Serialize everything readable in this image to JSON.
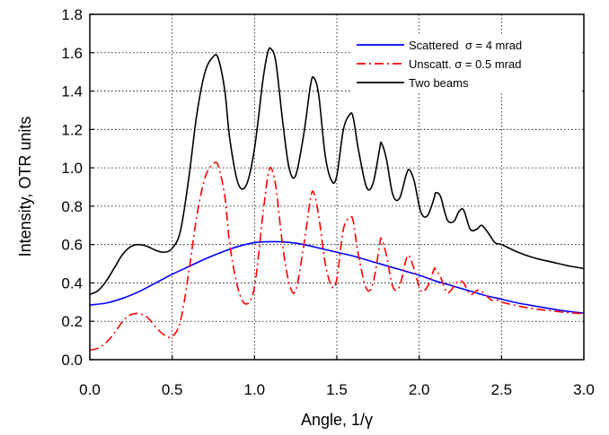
{
  "chart_data": {
    "type": "line",
    "title": "",
    "xlabel": "Angle, 1/γ",
    "ylabel": "Intensity, OTR units",
    "xlim": [
      0.0,
      3.0
    ],
    "ylim": [
      0.0,
      1.8
    ],
    "xticks": [
      "0.0",
      "0.5",
      "1.0",
      "1.5",
      "2.0",
      "2.5",
      "3.0"
    ],
    "yticks": [
      "0.0",
      "0.2",
      "0.4",
      "0.6",
      "0.8",
      "1.0",
      "1.2",
      "1.4",
      "1.6",
      "1.8"
    ],
    "grid": true,
    "legend_position": "top-right",
    "series": [
      {
        "name": "Scattered  σ = 4 mrad",
        "color": "#0000ff",
        "style": "solid",
        "x": [
          0.0,
          0.1,
          0.2,
          0.3,
          0.4,
          0.5,
          0.6,
          0.7,
          0.8,
          0.9,
          1.0,
          1.1,
          1.2,
          1.3,
          1.4,
          1.5,
          1.6,
          1.7,
          1.8,
          1.9,
          2.0,
          2.1,
          2.2,
          2.3,
          2.4,
          2.5,
          2.6,
          2.7,
          2.8,
          2.9,
          3.0
        ],
        "y": [
          0.285,
          0.295,
          0.32,
          0.355,
          0.4,
          0.445,
          0.485,
          0.525,
          0.56,
          0.59,
          0.61,
          0.615,
          0.612,
          0.6,
          0.58,
          0.56,
          0.54,
          0.515,
          0.49,
          0.465,
          0.44,
          0.41,
          0.385,
          0.36,
          0.335,
          0.315,
          0.295,
          0.28,
          0.265,
          0.252,
          0.243
        ]
      },
      {
        "name": "Unscatt. σ = 0.5 mrad",
        "color": "#ff0000",
        "style": "dash-dot",
        "x": [
          0.0,
          0.05,
          0.1,
          0.15,
          0.2,
          0.25,
          0.3,
          0.35,
          0.4,
          0.45,
          0.5,
          0.55,
          0.6,
          0.65,
          0.7,
          0.75,
          0.78,
          0.82,
          0.85,
          0.9,
          0.95,
          1.0,
          1.05,
          1.08,
          1.1,
          1.13,
          1.17,
          1.21,
          1.25,
          1.3,
          1.34,
          1.36,
          1.39,
          1.43,
          1.47,
          1.5,
          1.54,
          1.58,
          1.6,
          1.63,
          1.68,
          1.72,
          1.76,
          1.77,
          1.8,
          1.84,
          1.88,
          1.92,
          1.94,
          1.97,
          2.01,
          2.05,
          2.09,
          2.1,
          2.13,
          2.17,
          2.21,
          2.24,
          2.27,
          2.31,
          2.35,
          2.37,
          2.4,
          2.44,
          2.48,
          2.5,
          2.6,
          2.7,
          2.8,
          2.9,
          3.0
        ],
        "y": [
          0.05,
          0.06,
          0.09,
          0.14,
          0.2,
          0.235,
          0.24,
          0.22,
          0.17,
          0.13,
          0.12,
          0.2,
          0.45,
          0.75,
          0.95,
          1.02,
          1.01,
          0.85,
          0.6,
          0.37,
          0.29,
          0.38,
          0.75,
          0.95,
          1.0,
          0.9,
          0.6,
          0.4,
          0.36,
          0.6,
          0.84,
          0.87,
          0.75,
          0.5,
          0.38,
          0.42,
          0.68,
          0.74,
          0.72,
          0.55,
          0.37,
          0.4,
          0.6,
          0.63,
          0.55,
          0.38,
          0.38,
          0.52,
          0.54,
          0.47,
          0.36,
          0.38,
          0.47,
          0.47,
          0.43,
          0.35,
          0.38,
          0.41,
          0.4,
          0.34,
          0.36,
          0.36,
          0.34,
          0.31,
          0.31,
          0.3,
          0.28,
          0.265,
          0.255,
          0.245,
          0.24
        ]
      },
      {
        "name": "Two beams",
        "color": "#000000",
        "style": "solid",
        "x": [
          0.0,
          0.05,
          0.1,
          0.15,
          0.2,
          0.25,
          0.3,
          0.35,
          0.4,
          0.45,
          0.5,
          0.55,
          0.6,
          0.65,
          0.7,
          0.75,
          0.78,
          0.82,
          0.85,
          0.9,
          0.95,
          1.0,
          1.05,
          1.08,
          1.1,
          1.13,
          1.17,
          1.21,
          1.25,
          1.3,
          1.34,
          1.36,
          1.39,
          1.43,
          1.47,
          1.5,
          1.54,
          1.58,
          1.6,
          1.63,
          1.68,
          1.72,
          1.76,
          1.77,
          1.8,
          1.84,
          1.88,
          1.92,
          1.94,
          1.97,
          2.01,
          2.05,
          2.09,
          2.1,
          2.13,
          2.17,
          2.21,
          2.24,
          2.27,
          2.31,
          2.35,
          2.38,
          2.42,
          2.46,
          2.5,
          2.6,
          2.7,
          2.8,
          2.9,
          3.0
        ],
        "y": [
          0.34,
          0.36,
          0.41,
          0.48,
          0.55,
          0.59,
          0.6,
          0.59,
          0.57,
          0.56,
          0.58,
          0.67,
          0.94,
          1.28,
          1.5,
          1.58,
          1.57,
          1.4,
          1.15,
          0.92,
          0.91,
          1.1,
          1.45,
          1.6,
          1.62,
          1.55,
          1.25,
          1.0,
          0.96,
          1.18,
          1.43,
          1.47,
          1.38,
          1.06,
          0.93,
          0.96,
          1.2,
          1.28,
          1.26,
          1.1,
          0.9,
          0.92,
          1.1,
          1.13,
          1.05,
          0.86,
          0.84,
          0.96,
          0.99,
          0.93,
          0.77,
          0.75,
          0.84,
          0.87,
          0.85,
          0.73,
          0.72,
          0.77,
          0.78,
          0.68,
          0.68,
          0.7,
          0.66,
          0.61,
          0.6,
          0.56,
          0.53,
          0.51,
          0.49,
          0.475
        ]
      }
    ]
  }
}
